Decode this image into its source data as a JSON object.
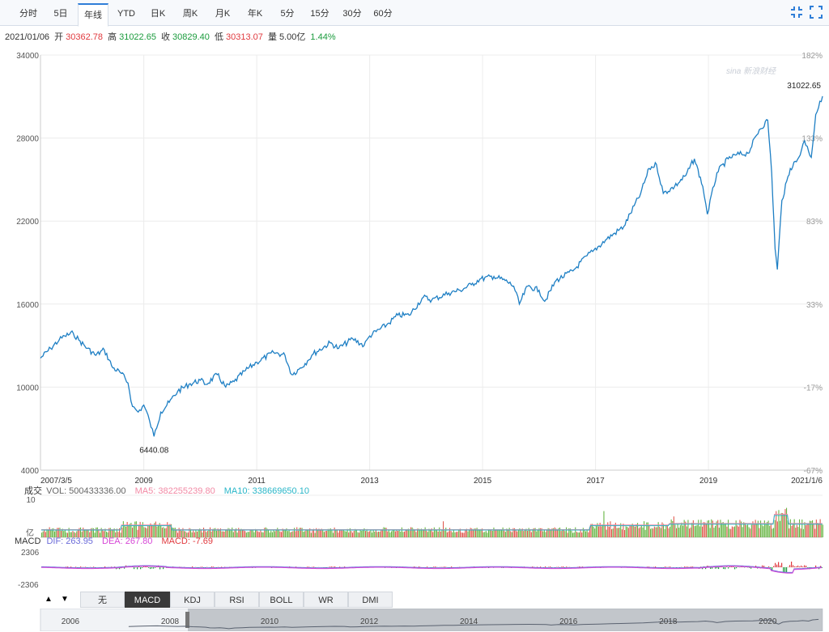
{
  "tabs": [
    "分时",
    "5日",
    "年线",
    "YTD",
    "日K",
    "周K",
    "月K",
    "年K",
    "5分",
    "15分",
    "30分",
    "60分"
  ],
  "active_tab": "年线",
  "quote": {
    "date": "2021/01/06",
    "open_label": "开",
    "open": "30362.78",
    "high_label": "高",
    "high": "31022.65",
    "close_label": "收",
    "close": "30829.40",
    "low_label": "低",
    "low": "30313.07",
    "vol_label": "量",
    "vol": "5.00亿",
    "change": "1.44%"
  },
  "watermark": "sina 新浪财经",
  "volume_legend": {
    "label": "成交",
    "vol": "VOL: 500433336.00",
    "ma5": "MA5: 382255239.80",
    "ma10": "MA10: 338669650.10",
    "axis_top": "10",
    "axis_unit": "亿"
  },
  "macd_legend": {
    "label": "MACD",
    "dif": "DIF: 263.95",
    "dea": "DEA: 267.80",
    "macd": "MACD: -7.69",
    "axis_top": "2306",
    "axis_bottom": "-2306"
  },
  "indicator_buttons": [
    "无",
    "MACD",
    "KDJ",
    "RSI",
    "BOLL",
    "WR",
    "DMI"
  ],
  "active_indicator": "MACD",
  "navigator_labels": [
    "2006",
    "2008",
    "2010",
    "2012",
    "2014",
    "2016",
    "2018",
    "2020"
  ],
  "colors": {
    "line": "#1e7fc4",
    "red": "#e0393e",
    "green": "#1a9b3c",
    "vol_green": "#66b544",
    "vol_red": "#e05a4f",
    "ma5": "#f28aa5",
    "ma10": "#29b6c8",
    "dif": "#6b6bd9",
    "dea": "#d645d6"
  },
  "chart_data": {
    "type": "line",
    "title": "",
    "y_ticks": [
      34000,
      28000,
      22000,
      16000,
      10000,
      4000
    ],
    "ylim": [
      4000,
      34000
    ],
    "pct_ticks": [
      "182%",
      "133%",
      "83%",
      "33%",
      "-17%",
      "-67%"
    ],
    "x_ticks": [
      "2007/3/5",
      "2009",
      "2011",
      "2013",
      "2015",
      "2017",
      "2019",
      "2021/1/6"
    ],
    "xlim": [
      2007.17,
      2021.02
    ],
    "series": [
      {
        "x": [
          2007.17,
          2007.35,
          2007.5,
          2007.6,
          2007.75,
          2007.85,
          2008.0,
          2008.15,
          2008.3,
          2008.45,
          2008.6,
          2008.72,
          2008.8,
          2008.9,
          2009.0,
          2009.1,
          2009.18,
          2009.3,
          2009.45,
          2009.6,
          2009.8,
          2010.0,
          2010.1,
          2010.3,
          2010.45,
          2010.6,
          2010.8,
          2011.0,
          2011.3,
          2011.5,
          2011.62,
          2011.75,
          2011.9,
          2012.0,
          2012.3,
          2012.45,
          2012.7,
          2012.9,
          2013.0,
          2013.3,
          2013.5,
          2013.7,
          2013.95,
          2014.1,
          2014.4,
          2014.6,
          2014.8,
          2014.95,
          2015.2,
          2015.4,
          2015.55,
          2015.65,
          2015.8,
          2016.0,
          2016.1,
          2016.3,
          2016.6,
          2016.85,
          2016.95,
          2017.2,
          2017.5,
          2017.8,
          2017.95,
          2018.08,
          2018.2,
          2018.4,
          2018.6,
          2018.75,
          2018.9,
          2018.98,
          2019.15,
          2019.35,
          2019.5,
          2019.7,
          2019.9,
          2020.05,
          2020.12,
          2020.18,
          2020.22,
          2020.3,
          2020.45,
          2020.6,
          2020.7,
          2020.75,
          2020.82,
          2020.9,
          2020.95,
          2021.02
        ],
        "y": [
          12100,
          12800,
          13400,
          13700,
          13900,
          13400,
          12800,
          12300,
          12700,
          11400,
          11000,
          10300,
          8600,
          8200,
          8700,
          7600,
          6440,
          8200,
          8900,
          9700,
          10200,
          10500,
          10200,
          10900,
          10000,
          10400,
          11200,
          11800,
          12500,
          12300,
          10900,
          11300,
          11900,
          12400,
          13200,
          12800,
          13500,
          13000,
          13700,
          14500,
          15200,
          15200,
          16500,
          16300,
          16800,
          17000,
          17400,
          17800,
          18000,
          17700,
          17300,
          16000,
          17300,
          17000,
          16200,
          17700,
          18400,
          19500,
          19800,
          20700,
          21600,
          24000,
          25800,
          26100,
          24000,
          24500,
          25300,
          26500,
          24500,
          22500,
          25500,
          26500,
          26800,
          26900,
          28600,
          29300,
          25500,
          20000,
          18500,
          23500,
          25800,
          26600,
          27800,
          27400,
          26600,
          29700,
          30200,
          31022.65
        ]
      }
    ],
    "annotations": [
      {
        "text": "6440.08",
        "x": 2009.18,
        "y": 6440.08
      },
      {
        "text": "31022.65",
        "x": 2021.02,
        "y": 31022.65
      }
    ]
  }
}
